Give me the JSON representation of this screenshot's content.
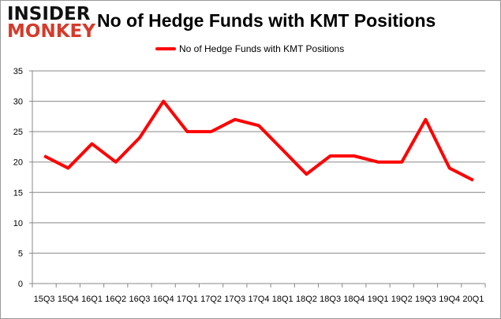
{
  "logo": {
    "line1": "INSIDER",
    "line2": "MONKEY"
  },
  "chart_data": {
    "type": "line",
    "title": "No of Hedge Funds with KMT Positions",
    "categories": [
      "15Q3",
      "15Q4",
      "16Q1",
      "16Q2",
      "16Q3",
      "16Q4",
      "17Q1",
      "17Q2",
      "17Q3",
      "17Q4",
      "18Q1",
      "18Q2",
      "18Q3",
      "18Q4",
      "19Q1",
      "19Q2",
      "19Q3",
      "19Q4",
      "20Q1"
    ],
    "series": [
      {
        "name": "No of Hedge Funds with KMT Positions",
        "color": "#ff0000",
        "values": [
          21,
          19,
          23,
          20,
          24,
          30,
          25,
          25,
          27,
          26,
          22,
          18,
          21,
          21,
          20,
          20,
          27,
          19,
          17
        ]
      }
    ],
    "ylim": [
      0,
      35
    ],
    "yticks": [
      0,
      5,
      10,
      15,
      20,
      25,
      30,
      35
    ],
    "grid": true,
    "legend": "top"
  }
}
